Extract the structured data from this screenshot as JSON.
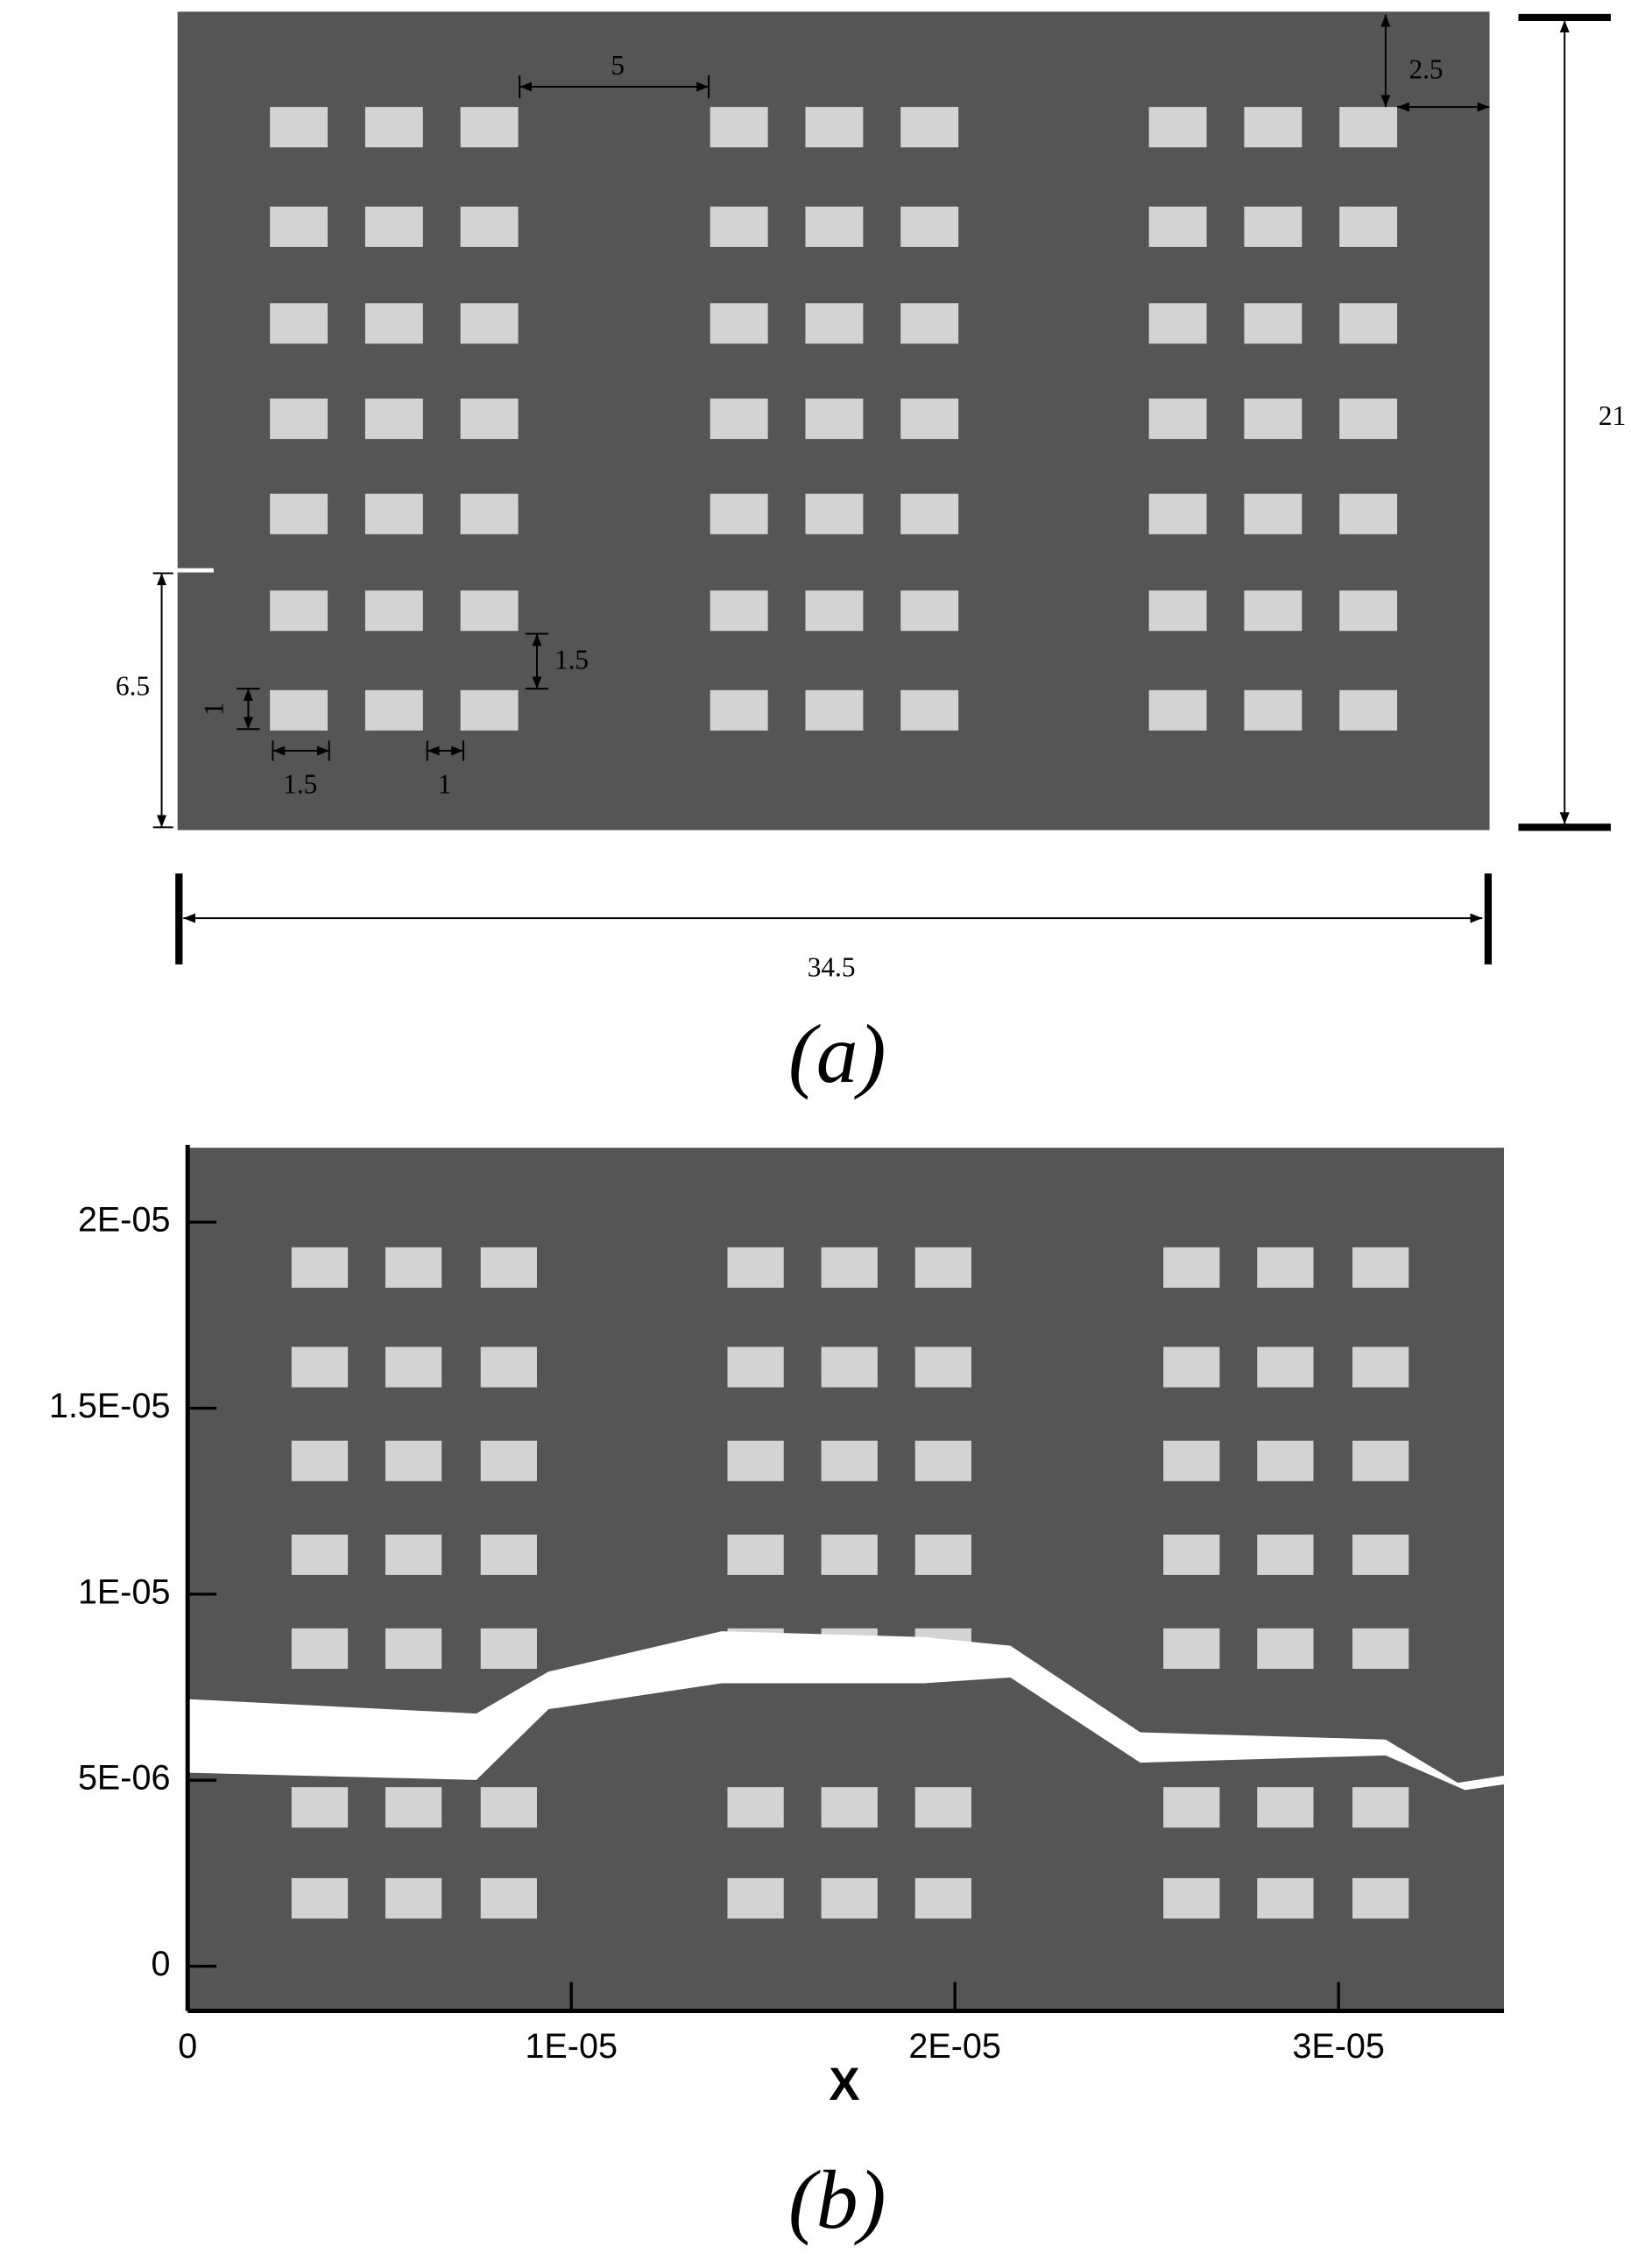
{
  "panel_a": {
    "dimensions": {
      "gap_between_groups": "5",
      "edge_margin": "2.5",
      "height": "21",
      "crack_height": "6.5",
      "row_gap": "1.5",
      "block_height": "1",
      "block_width": "1.5",
      "column_gap": "1",
      "width": "34.5"
    },
    "caption": "(a)"
  },
  "panel_b": {
    "xlabel": "X",
    "xlim": [
      0,
      3.45e-05
    ],
    "ylim": [
      -1.2e-06,
      2.2e-05
    ],
    "xticks": [
      0,
      {
        "value": 1e-05,
        "label": "1E-05"
      },
      {
        "value": 2e-05,
        "label": "2E-05"
      },
      {
        "value": 3e-05,
        "label": "3E-05"
      }
    ],
    "yticks": [
      0,
      {
        "value": 5e-06,
        "label": "5E-06"
      },
      {
        "value": 1e-05,
        "label": "1E-05"
      },
      {
        "value": 1.5e-05,
        "label": "1.5E-05"
      },
      {
        "value": 2e-05,
        "label": "2E-05"
      }
    ],
    "caption": "(b)"
  }
}
